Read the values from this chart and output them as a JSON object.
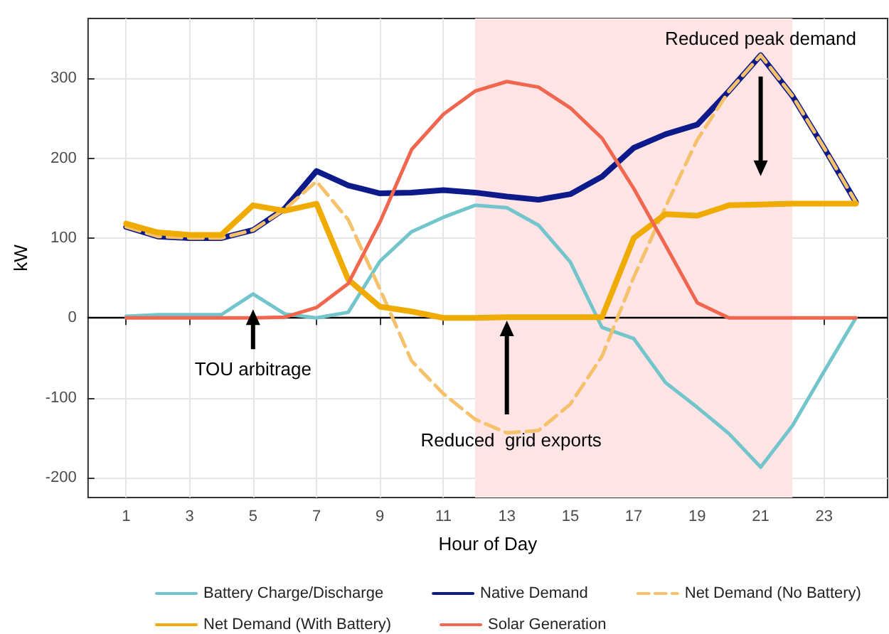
{
  "chart_data": {
    "type": "line",
    "xlabel": "Hour of Day",
    "ylabel": "kW",
    "x": [
      1,
      2,
      3,
      4,
      5,
      6,
      7,
      8,
      9,
      10,
      11,
      12,
      13,
      14,
      15,
      16,
      17,
      18,
      19,
      20,
      21,
      22,
      23,
      24
    ],
    "series": [
      {
        "name": "Battery Charge/Discharge",
        "color": "#73c5cc",
        "values": [
          2,
          4,
          4,
          4,
          30,
          5,
          0,
          7,
          71,
          108,
          126,
          141,
          138,
          116,
          70,
          -12,
          -26,
          -81,
          -112,
          -145,
          -187,
          -135,
          -67,
          0
        ]
      },
      {
        "name": "Native Demand",
        "color": "#0c1a8a",
        "values": [
          114,
          102,
          100,
          100,
          110,
          137,
          184,
          166,
          156,
          157,
          160,
          157,
          152,
          148,
          155,
          177,
          213,
          230,
          242,
          284,
          329,
          278,
          213,
          145
        ]
      },
      {
        "name": "Net Demand (No Battery)",
        "color": "#f5c26b",
        "line_style": "dashed",
        "values": [
          114,
          102,
          100,
          100,
          110,
          136,
          171,
          123,
          36,
          -54,
          -95,
          -127,
          -144,
          -141,
          -108,
          -48,
          51,
          139,
          223,
          284,
          329,
          278,
          213,
          145
        ]
      },
      {
        "name": "Net Demand (With Battery)",
        "color": "#f0ab00",
        "values": [
          118,
          107,
          104,
          104,
          141,
          134,
          143,
          48,
          14,
          8,
          0,
          0,
          1,
          1,
          1,
          1,
          100,
          130,
          128,
          141,
          142,
          143,
          143,
          143
        ]
      },
      {
        "name": "Solar Generation",
        "color": "#f0664f",
        "values": [
          0,
          0,
          0,
          0,
          0,
          1,
          13,
          43,
          120,
          211,
          255,
          284,
          296,
          289,
          263,
          225,
          162,
          91,
          19,
          0,
          0,
          0,
          0,
          0
        ]
      }
    ],
    "xlim": [
      -0.2,
      25
    ],
    "xticks": [
      1,
      3,
      5,
      7,
      9,
      11,
      13,
      15,
      17,
      19,
      21,
      23
    ],
    "ylim": [
      -225,
      375
    ],
    "yticks": [
      -200,
      -100,
      0,
      100,
      200,
      300
    ],
    "grid": true,
    "legend": "bottom",
    "marker": "none",
    "line_style": "solid",
    "ref_lines": [
      {
        "axis": "y",
        "value": 0,
        "color": "#000000"
      }
    ],
    "bands": [
      {
        "axis": "x",
        "from": 12,
        "to": 22,
        "color": "#ffe4e6"
      }
    ],
    "annotations": [
      {
        "text": "TOU arbitrage",
        "x": 5,
        "y": 0
      },
      {
        "text": "Reduced  grid exports",
        "x": 13,
        "y": -144
      },
      {
        "text": "Reduced peak demand",
        "x": 21,
        "y": 329
      }
    ]
  }
}
